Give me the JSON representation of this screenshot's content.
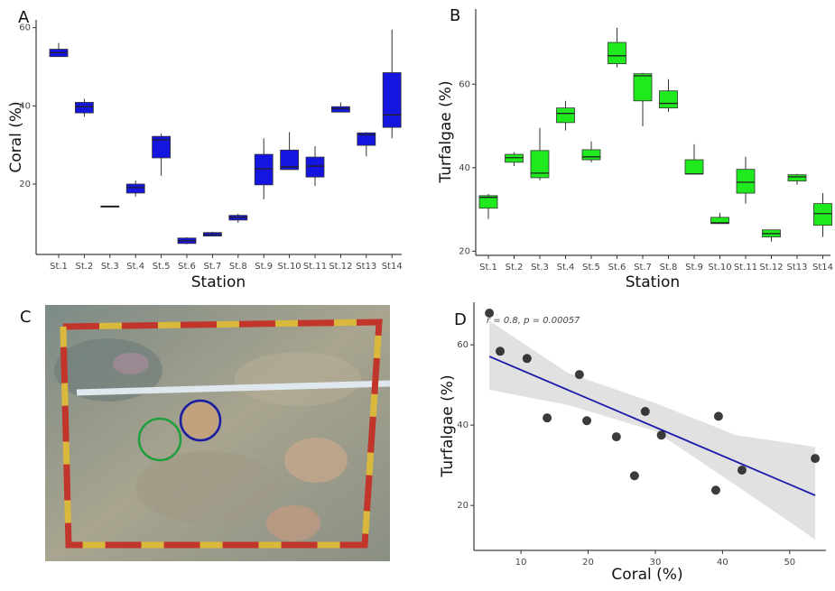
{
  "chart_data": [
    {
      "type": "box",
      "label": "A",
      "xlabel": "Station",
      "ylabel": "Coral (%)",
      "categories": [
        "St.1",
        "St.2",
        "St.3",
        "St.4",
        "St.5",
        "St.6",
        "St.7",
        "St.8",
        "St.9",
        "St.10",
        "St.11",
        "St.12",
        "St13",
        "St14"
      ],
      "min": [
        52.6,
        37.2,
        14.1,
        16.8,
        22.1,
        4.6,
        6.6,
        10.1,
        16.1,
        23.7,
        19.5,
        38.4,
        27.1,
        31.7
      ],
      "q1": [
        52.6,
        38.2,
        14.1,
        17.7,
        26.7,
        4.8,
        6.7,
        10.8,
        19.8,
        23.7,
        21.8,
        38.4,
        29.9,
        34.5
      ],
      "median": [
        53.6,
        39.8,
        14.3,
        19.1,
        31.3,
        5.5,
        7.1,
        11.5,
        23.9,
        24.4,
        24.6,
        39.3,
        32.6,
        37.7
      ],
      "q3": [
        54.5,
        40.9,
        14.4,
        20.0,
        32.2,
        6.2,
        7.6,
        12.0,
        27.6,
        28.7,
        26.9,
        39.8,
        33.1,
        48.5
      ],
      "max": [
        56.1,
        41.8,
        14.4,
        20.9,
        32.9,
        6.4,
        7.8,
        12.4,
        31.7,
        33.3,
        29.7,
        40.9,
        33.3,
        59.5
      ],
      "color": "#1515e0",
      "ylim": [
        2,
        62
      ],
      "yticks": [
        20,
        40,
        60
      ]
    },
    {
      "type": "box",
      "label": "B",
      "xlabel": "Station",
      "ylabel": "Turfalgae (%)",
      "categories": [
        "St.1",
        "St.2",
        "St.3",
        "St.4",
        "St.5",
        "St.6",
        "St.7",
        "St.8",
        "St.9",
        "St.10",
        "St.11",
        "St.12",
        "St13",
        "St14"
      ],
      "min": [
        27.7,
        40.4,
        37.0,
        48.9,
        41.3,
        64.0,
        49.9,
        53.4,
        38.5,
        26.6,
        31.4,
        22.3,
        35.9,
        23.4
      ],
      "q1": [
        30.3,
        41.3,
        37.6,
        50.8,
        41.9,
        64.9,
        56.0,
        54.3,
        38.5,
        26.6,
        33.9,
        23.4,
        36.8,
        26.2
      ],
      "median": [
        32.9,
        42.4,
        38.7,
        53.0,
        42.6,
        66.8,
        62.0,
        55.4,
        38.5,
        26.8,
        36.5,
        24.2,
        37.8,
        29.0
      ],
      "q3": [
        33.3,
        43.2,
        44.1,
        54.3,
        44.3,
        70.0,
        62.5,
        58.4,
        41.9,
        28.1,
        39.6,
        25.1,
        38.3,
        31.4
      ],
      "max": [
        33.7,
        43.7,
        49.5,
        56.0,
        46.3,
        73.5,
        62.7,
        61.2,
        45.6,
        29.2,
        42.6,
        25.1,
        38.5,
        33.9
      ],
      "color": "#1eea1e",
      "ylim": [
        19,
        78
      ],
      "yticks": [
        20,
        40,
        60
      ]
    },
    {
      "type": "scatter",
      "label": "D",
      "xlabel": "Coral (%)",
      "ylabel": "Turfalgae (%)",
      "annotation": "r  =  0.8, p = 0.00057",
      "x": [
        5.3,
        6.9,
        10.9,
        18.7,
        13.9,
        19.8,
        24.2,
        28.5,
        30.9,
        26.9,
        39.4,
        39.0,
        42.9,
        53.8
      ],
      "y": [
        67.9,
        58.4,
        56.6,
        52.6,
        41.8,
        41.1,
        37.1,
        43.4,
        37.5,
        27.4,
        42.2,
        23.8,
        28.8,
        31.7
      ],
      "color": "#1a1a1a",
      "fit": {
        "x": [
          5.3,
          53.8
        ],
        "y": [
          57.1,
          22.5
        ]
      },
      "line_color": "#1a1aaa",
      "band": {
        "x": [
          5.3,
          17,
          30,
          42,
          53.8
        ],
        "lower": [
          48.8,
          45,
          38.5,
          25,
          11.5
        ],
        "upper": [
          66,
          53,
          45.5,
          37.5,
          34.6
        ]
      },
      "band_color": "#d9d9d9",
      "xlim": [
        3,
        55.4
      ],
      "xticks": [
        10,
        20,
        30,
        40,
        50
      ],
      "ylim": [
        8.8,
        70.6
      ],
      "yticks": [
        20,
        40,
        60
      ]
    }
  ],
  "photo_panel": {
    "label": "C"
  }
}
